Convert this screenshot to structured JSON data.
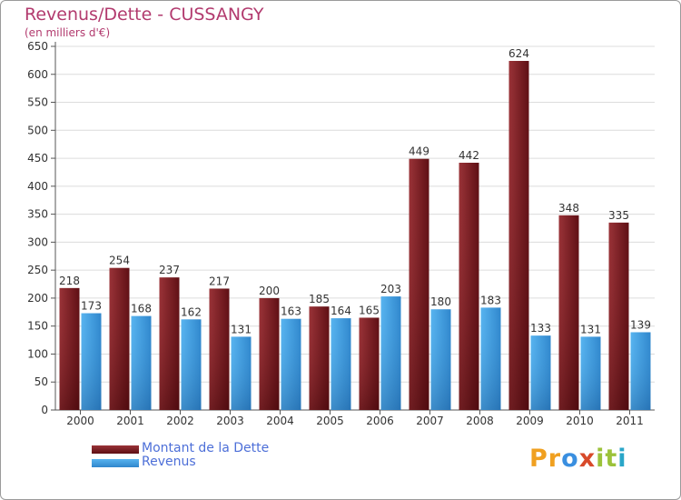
{
  "chart_data": {
    "type": "bar",
    "title": "Revenus/Dette - CUSSANGY",
    "subtitle": "(en milliers d'€)",
    "categories": [
      "2000",
      "2001",
      "2002",
      "2003",
      "2004",
      "2005",
      "2006",
      "2007",
      "2008",
      "2009",
      "2010",
      "2011"
    ],
    "series": [
      {
        "name": "Montant de la Dette",
        "values": [
          218,
          254,
          237,
          217,
          200,
          185,
          165,
          449,
          442,
          624,
          348,
          335
        ],
        "color": "#7a1a1f"
      },
      {
        "name": "Revenus",
        "values": [
          173,
          168,
          162,
          131,
          163,
          164,
          203,
          180,
          183,
          133,
          131,
          139
        ],
        "color": "#3f9ee4"
      }
    ],
    "ylim": [
      0,
      650
    ],
    "yticks": [
      0,
      50,
      100,
      150,
      200,
      250,
      300,
      350,
      400,
      450,
      500,
      550,
      600,
      650
    ],
    "grid": "horizontal",
    "legend_position": "bottom-left"
  },
  "colors": {
    "title": "#b23a6e",
    "legend_text": "#4d6fd8",
    "background": "#ffffff"
  },
  "logo": {
    "letters": [
      "P",
      "r",
      "o",
      "x",
      "i",
      "t",
      "i"
    ],
    "colors": [
      "#f0a020",
      "#f0a020",
      "#3a8fe0",
      "#d84a2a",
      "#9cc23a",
      "#9cc23a",
      "#2aa6c8"
    ]
  }
}
